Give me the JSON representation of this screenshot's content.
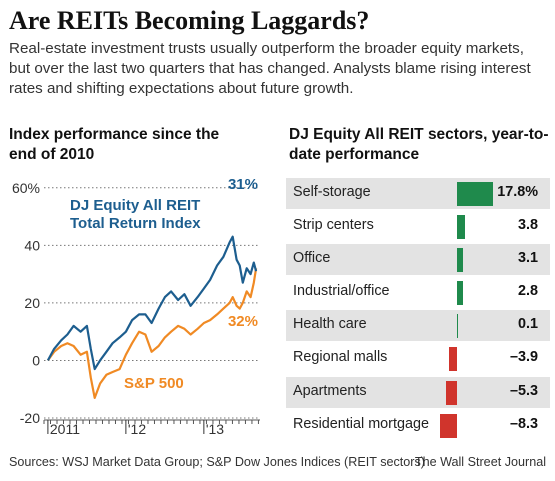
{
  "headline": "Are REITs Becoming Laggards?",
  "dek": "Real-estate investment trusts usually outperform the broader equity markets, but over the last two quarters that has changed. Analysts blame rising interest rates and shifting expectations about future growth.",
  "left_title": "Index performance since the end of 2010",
  "right_title": "DJ Equity All REIT sectors, year-to-date performance",
  "sources": "Sources: WSJ Market Data Group; S&P Dow Jones Indices (REIT sectors)",
  "credit": "The Wall Street Journal",
  "colors": {
    "reit": "#1d5e8f",
    "sp500": "#f08a24",
    "positive": "#1f8a4c",
    "negative": "#d0342c",
    "grid": "#777777"
  },
  "chart_data": [
    {
      "type": "line",
      "title": "Index performance since the end of 2010",
      "y_tick_labels": [
        "60%",
        "40",
        "20",
        "0",
        "-20"
      ],
      "y_ticks": [
        60,
        40,
        20,
        0,
        -20
      ],
      "ylim": [
        -20,
        62
      ],
      "x_tick_labels": [
        "2011",
        "'12",
        "'13"
      ],
      "x_tick_positions": [
        2011.0,
        2012.0,
        2013.0
      ],
      "xlim": [
        2010.95,
        2013.72
      ],
      "series": [
        {
          "name": "DJ Equity All REIT Total Return Index",
          "end_label": "31%",
          "x": [
            2011.0,
            2011.08,
            2011.17,
            2011.25,
            2011.33,
            2011.42,
            2011.5,
            2011.55,
            2011.6,
            2011.67,
            2011.75,
            2011.83,
            2011.92,
            2012.0,
            2012.08,
            2012.17,
            2012.25,
            2012.33,
            2012.42,
            2012.5,
            2012.58,
            2012.67,
            2012.75,
            2012.83,
            2012.92,
            2013.0,
            2013.08,
            2013.17,
            2013.25,
            2013.33,
            2013.37,
            2013.42,
            2013.46,
            2013.5,
            2013.55,
            2013.6,
            2013.64,
            2013.67
          ],
          "y": [
            0,
            4,
            7,
            9,
            12,
            10,
            12,
            4,
            -3,
            0,
            3,
            6,
            8,
            10,
            14,
            16,
            16,
            13,
            18,
            22,
            24,
            21,
            23,
            19,
            22,
            25,
            28,
            33,
            36,
            41,
            43,
            35,
            33,
            27,
            32,
            30,
            34,
            31
          ]
        },
        {
          "name": "S&P 500",
          "end_label": "32%",
          "x": [
            2011.0,
            2011.08,
            2011.17,
            2011.25,
            2011.33,
            2011.42,
            2011.5,
            2011.55,
            2011.6,
            2011.67,
            2011.75,
            2011.83,
            2011.92,
            2012.0,
            2012.08,
            2012.17,
            2012.25,
            2012.33,
            2012.42,
            2012.5,
            2012.58,
            2012.67,
            2012.75,
            2012.83,
            2012.92,
            2013.0,
            2013.08,
            2013.17,
            2013.25,
            2013.33,
            2013.37,
            2013.42,
            2013.46,
            2013.5,
            2013.55,
            2013.6,
            2013.64,
            2013.67
          ],
          "y": [
            0,
            3,
            5,
            6,
            5,
            2,
            3,
            -6,
            -13,
            -8,
            -5,
            -4,
            -3,
            2,
            6,
            10,
            9,
            3,
            5,
            8,
            10,
            12,
            11,
            9,
            11,
            13,
            14,
            16,
            18,
            20,
            22,
            19,
            18,
            20,
            24,
            22,
            27,
            32
          ]
        }
      ]
    },
    {
      "type": "bar",
      "title": "DJ Equity All REIT sectors, year-to-date performance",
      "categories": [
        "Self-storage",
        "Strip centers",
        "Office",
        "Industrial/office",
        "Health care",
        "Regional malls",
        "Apartments",
        "Residential mortgage"
      ],
      "values": [
        17.8,
        3.8,
        3.1,
        2.8,
        0.1,
        -3.9,
        -5.3,
        -8.3
      ],
      "value_labels": [
        "17.8%",
        "3.8",
        "3.1",
        "2.8",
        "0.1",
        "–3.9",
        "–5.3",
        "–8.3"
      ]
    }
  ]
}
